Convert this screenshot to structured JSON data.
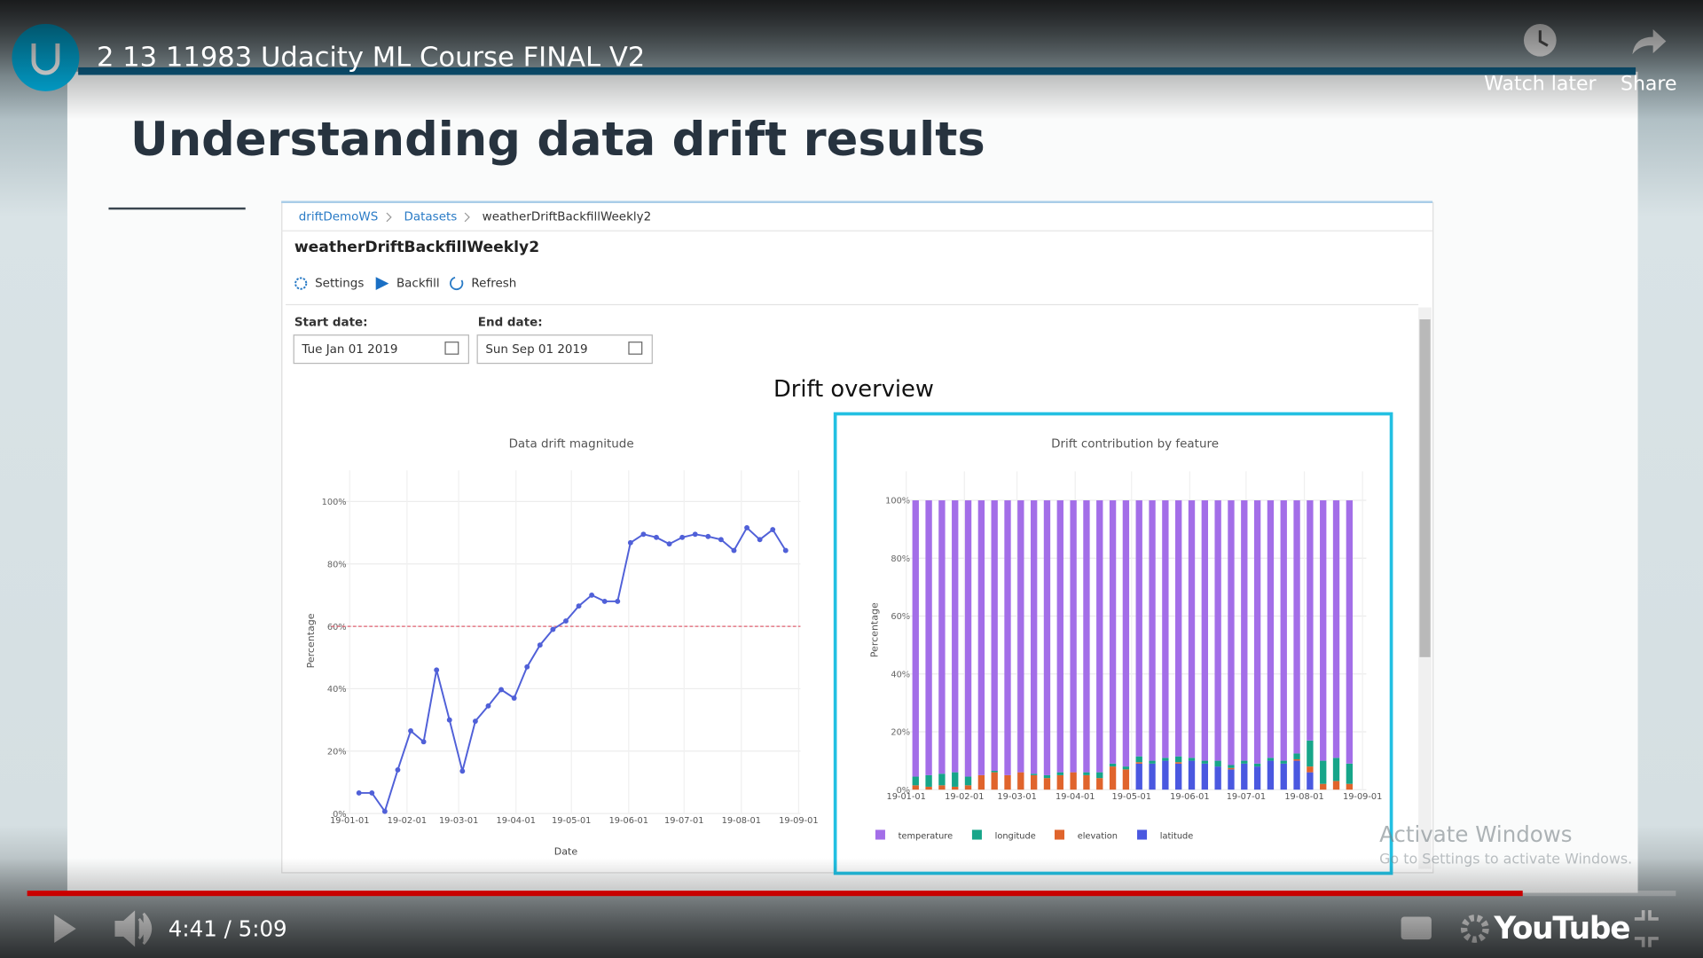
{
  "player": {
    "title": "2 13 11983 Udacity ML Course FINAL V2",
    "watch_later": "Watch later",
    "share": "Share",
    "time": "4:41 / 5:09",
    "brand": "YouTube"
  },
  "slide": {
    "title": "Understanding data drift results"
  },
  "portal": {
    "breadcrumb": [
      "driftDemoWS",
      "Datasets",
      "weatherDriftBackfillWeekly2"
    ],
    "dataset_title": "weatherDriftBackfillWeekly2",
    "toolbar": [
      "Settings",
      "Backfill",
      "Refresh"
    ],
    "start_label": "Start date:",
    "start_value": "Tue Jan 01 2019",
    "end_label": "End date:",
    "end_value": "Sun Sep 01 2019",
    "section_title": "Drift overview"
  },
  "watermark": {
    "title": "Activate Windows",
    "subtitle": "Go to Settings to activate Windows."
  },
  "chart_data": [
    {
      "type": "line",
      "title": "Data drift magnitude",
      "x_label": "Date",
      "y_label": "Percentage",
      "color": "#5060d8",
      "x": [
        "19-01-06",
        "19-01-13",
        "19-01-20",
        "19-01-27",
        "19-02-03",
        "19-02-10",
        "19-02-17",
        "19-02-24",
        "19-03-03",
        "19-03-10",
        "19-03-17",
        "19-03-24",
        "19-03-31",
        "19-04-07",
        "19-04-14",
        "19-04-21",
        "19-04-28",
        "19-05-05",
        "19-05-12",
        "19-05-19",
        "19-05-26",
        "19-06-02",
        "19-06-09",
        "19-06-16",
        "19-06-23",
        "19-06-30",
        "19-07-07",
        "19-07-14",
        "19-07-21",
        "19-07-28",
        "19-08-04",
        "19-08-11",
        "19-08-18",
        "19-08-25"
      ],
      "values": [
        6.6,
        6.6,
        0.7,
        14,
        26.5,
        23,
        46,
        30,
        13.6,
        29.6,
        34.5,
        39.7,
        37,
        47,
        54,
        59,
        61.7,
        66.5,
        70,
        68,
        68,
        86.8,
        89.5,
        88.5,
        86.4,
        88.5,
        89.5,
        88.8,
        87.8,
        84.3,
        91.6,
        87.8,
        91,
        84.3
      ],
      "threshold": 60,
      "threshold_color": "#e06070",
      "xlim": [
        "18-12-22",
        "19-09-02"
      ],
      "xticks": [
        "19-01-01",
        "19-02-01",
        "19-03-01",
        "19-04-01",
        "19-05-01",
        "19-06-01",
        "19-07-01",
        "19-08-01",
        "19-09-01"
      ],
      "ylim": [
        0,
        110
      ],
      "yticks": [
        {
          "value": 0,
          "label": "0%"
        },
        {
          "value": 20,
          "label": "20%"
        },
        {
          "value": 40,
          "label": "40%"
        },
        {
          "value": 60,
          "label": "60%"
        },
        {
          "value": 80,
          "label": "80%"
        },
        {
          "value": 100,
          "label": "100%"
        }
      ],
      "grid": true
    },
    {
      "type": "bar",
      "stacked": true,
      "title": "Drift contribution by feature",
      "y_label": "Percentage",
      "legend": "bottom",
      "x": [
        "19-01-06",
        "19-01-13",
        "19-01-20",
        "19-01-27",
        "19-02-03",
        "19-02-10",
        "19-02-17",
        "19-02-24",
        "19-03-03",
        "19-03-10",
        "19-03-17",
        "19-03-24",
        "19-03-31",
        "19-04-07",
        "19-04-14",
        "19-04-21",
        "19-04-28",
        "19-05-05",
        "19-05-12",
        "19-05-19",
        "19-05-26",
        "19-06-02",
        "19-06-09",
        "19-06-16",
        "19-06-23",
        "19-06-30",
        "19-07-07",
        "19-07-14",
        "19-07-21",
        "19-07-28",
        "19-08-04",
        "19-08-11",
        "19-08-18",
        "19-08-25"
      ],
      "series": [
        {
          "name": "temperature",
          "color": "#a36ee8",
          "values": [
            95.5,
            95,
            94.5,
            94,
            95.5,
            95,
            93.5,
            95,
            94,
            94.5,
            95,
            94,
            94,
            94,
            94,
            91,
            92,
            88.5,
            90,
            89,
            88.5,
            89,
            90,
            90,
            91.5,
            90,
            91,
            89,
            90,
            87.5,
            83,
            90,
            89,
            91
          ]
        },
        {
          "name": "longitude",
          "color": "#17a589",
          "values": [
            3,
            4,
            4,
            5,
            3,
            0,
            0.5,
            0,
            0,
            0.5,
            1,
            1,
            0,
            1,
            2,
            1,
            1,
            2,
            1,
            1,
            2,
            1,
            1,
            2,
            1,
            1,
            1,
            1,
            1,
            2,
            9,
            8,
            8,
            7
          ]
        },
        {
          "name": "elevation",
          "color": "#e0642c",
          "values": [
            1.5,
            1,
            1.5,
            1,
            1.5,
            5,
            6,
            5,
            6,
            5,
            4,
            5,
            6,
            5,
            4,
            8,
            7,
            0.5,
            0,
            0,
            0.5,
            0,
            0,
            0,
            0.5,
            0,
            0,
            0,
            0,
            0.5,
            2,
            2,
            3,
            2
          ]
        },
        {
          "name": "latitude",
          "color": "#4a58e0",
          "values": [
            0,
            0,
            0,
            0,
            0,
            0,
            0,
            0,
            0,
            0,
            0,
            0,
            0,
            0,
            0,
            0,
            0,
            9,
            9,
            10,
            9,
            10,
            9,
            8,
            7,
            9,
            8,
            10,
            9,
            10,
            6,
            0,
            0,
            0
          ]
        }
      ],
      "xlim": [
        "18-12-26",
        "19-09-03"
      ],
      "xticks": [
        "19-01-01",
        "19-02-01",
        "19-03-01",
        "19-04-01",
        "19-05-01",
        "19-06-01",
        "19-07-01",
        "19-08-01",
        "19-09-01"
      ],
      "ylim": [
        0,
        110
      ],
      "yticks": [
        {
          "value": 0,
          "label": "0%"
        },
        {
          "value": 20,
          "label": "20%"
        },
        {
          "value": 40,
          "label": "40%"
        },
        {
          "value": 60,
          "label": "60%"
        },
        {
          "value": 80,
          "label": "80%"
        },
        {
          "value": 100,
          "label": "100%"
        }
      ],
      "grid": true
    }
  ]
}
